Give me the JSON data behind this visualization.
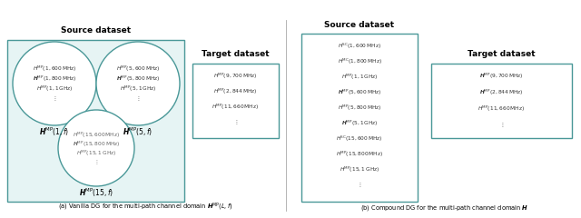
{
  "title_source_a": "Source dataset",
  "title_target_a": "Target dataset",
  "title_source_b": "Source dataset",
  "title_target_b": "Target dataset",
  "caption_a": "(a) Vanilla DG for the multi-path channel domain $\\boldsymbol{H}^{\\mathrm{MP}}(L, f)$",
  "caption_b": "(b) Compound DG for the multi-path channel domain $\\boldsymbol{H}$",
  "circle1_label": "$\\boldsymbol{H}^{\\mathrm{MP}}(1, f)$",
  "circle1_lines": [
    "$H^{\\mathrm{MP}}(1, 600\\,\\mathrm{MHz})$",
    "$\\boldsymbol{H}^{\\mathrm{MP}}(1, 800\\,\\mathrm{MHz})$",
    "$H^{\\mathrm{MP}}(1, 1\\,\\mathrm{GHz})$",
    "$\\vdots$"
  ],
  "circle2_label": "$\\boldsymbol{H}^{\\mathrm{MP}}(5, f)$",
  "circle2_lines": [
    "$H^{\\mathrm{MP}}(5, 600\\,\\mathrm{MHz})$",
    "$\\boldsymbol{H}^{\\mathrm{MP}}(5, 800\\,\\mathrm{MHz})$",
    "$H^{\\mathrm{MP}}(5, 1\\,\\mathrm{GHz})$",
    "$\\vdots$"
  ],
  "circle3_label": "$\\boldsymbol{H}^{\\mathrm{MP}}(15, f)$",
  "circle3_lines": [
    "$H^{\\mathrm{MP}}(15, 600\\,\\mathrm{MHz})$",
    "$\\boldsymbol{H}^{\\mathrm{MP}}(15, 800\\,\\mathrm{MHz})$",
    "$H^{\\mathrm{MP}}(15, 1\\,\\mathrm{GHz})$",
    "$\\vdots$"
  ],
  "target_a_lines": [
    "$H^{\\mathrm{MP}}(9, 700\\,\\mathrm{MHz})$",
    "$H^{\\mathrm{MP}}(2, 844\\,\\mathrm{MHz})$",
    "$H^{\\mathrm{MP}}(11, 660\\,\\mathrm{MHz})$",
    "$\\vdots$"
  ],
  "source_b_lines": [
    "$H^{\\mathrm{SC}}(1, 600\\,\\mathrm{MHz})$",
    "$H^{\\mathrm{MC}}(1, 800\\,\\mathrm{MHz})$",
    "$H^{\\mathrm{MP}}(1, 1\\,\\mathrm{GHz})$",
    "$\\boldsymbol{H}^{\\mathrm{MP}}(5, 600\\,\\mathrm{MHz})$",
    "$H^{\\mathrm{MP}}(5, 800\\,\\mathrm{MHz})$",
    "$\\boldsymbol{H}^{\\mathrm{MP}}(5, 1\\,\\mathrm{GHz})$",
    "$H^{\\mathrm{SC}}(15, 600\\,\\mathrm{MHz})$",
    "$H^{\\mathrm{MP}}(15, 800\\,\\mathrm{MHz})$",
    "$H^{\\mathrm{MP}}(15, 1\\,\\mathrm{GHz})$",
    "$\\vdots$"
  ],
  "source_b_bold": [
    3,
    5
  ],
  "target_b_lines": [
    "$\\boldsymbol{H}^{\\mathrm{MP}}(9, 700\\,\\mathrm{MHz})$",
    "$\\boldsymbol{H}^{\\mathrm{MP}}(2, 844\\,\\mathrm{MHz})$",
    "$H^{\\mathrm{MP}}(11, 660\\,\\mathrm{MHz})$",
    "$\\vdots$"
  ],
  "target_b_bold": [
    0,
    1
  ],
  "teal_color": "#4a9898",
  "light_teal_bg": "#e6f4f4",
  "bg_color": "#ffffff",
  "sep_color": "#aaaaaa"
}
